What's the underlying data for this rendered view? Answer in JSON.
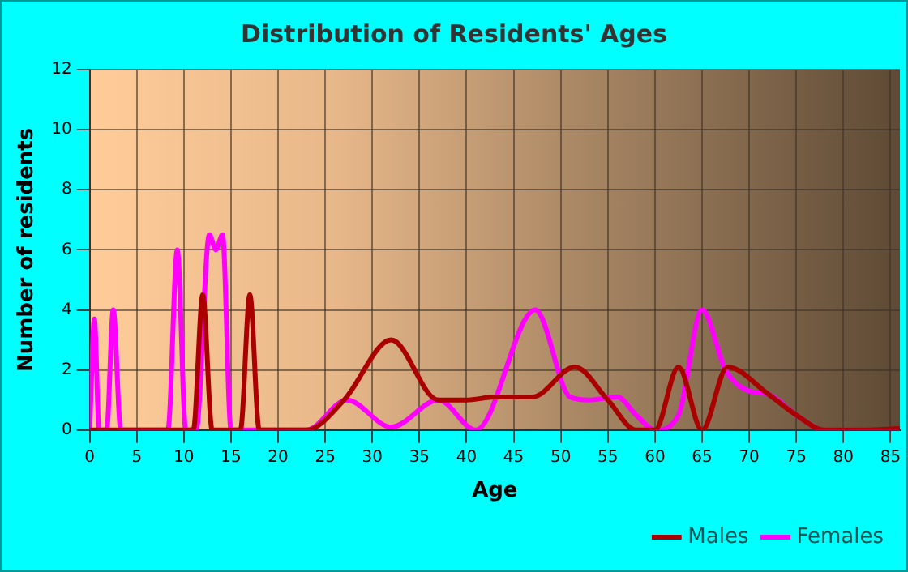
{
  "chart_data": {
    "type": "line",
    "title": "Distribution of Residents' Ages",
    "xlabel": "Age",
    "ylabel": "Number of residents",
    "xlim": [
      0,
      86
    ],
    "xticks": [
      0,
      5,
      10,
      15,
      20,
      25,
      30,
      35,
      40,
      45,
      50,
      55,
      60,
      65,
      70,
      75,
      80,
      85
    ],
    "ylim": [
      0,
      12
    ],
    "yticks": [
      0,
      2,
      4,
      6,
      8,
      10,
      12
    ],
    "grid": true,
    "legend": "bottom right",
    "marker": "none",
    "line_style": "solid",
    "series": [
      {
        "name": "Males",
        "color": "#aa0000",
        "x": [
          0,
          10,
          11,
          12,
          13,
          16,
          17,
          18,
          20,
          23,
          27,
          32,
          37,
          40,
          43,
          47,
          51.5,
          55,
          58,
          60,
          62.5,
          65,
          67.7,
          72,
          75,
          78,
          82,
          86
        ],
        "values": [
          0,
          0,
          0,
          4.5,
          0,
          0,
          4.5,
          0,
          0,
          0,
          1,
          3,
          1,
          1,
          1.1,
          1.1,
          2.1,
          1,
          0,
          0,
          2.1,
          0,
          2.1,
          1.2,
          0.5,
          0,
          0,
          0.05
        ]
      },
      {
        "name": "Females",
        "color": "#ff00ff",
        "x": [
          0,
          0.5,
          1,
          1.8,
          2.5,
          3.3,
          8.3,
          9.3,
          10.2,
          11.3,
          12.7,
          13.4,
          14.1,
          15,
          16,
          20,
          23,
          27.3,
          32,
          37,
          41,
          47.3,
          51,
          53,
          56,
          58,
          60,
          62.5,
          65,
          67.5,
          70,
          72,
          75,
          78,
          86
        ],
        "values": [
          0,
          3.7,
          0,
          0,
          4,
          0,
          0,
          6,
          0,
          0,
          6.5,
          6,
          6.5,
          0,
          0,
          0,
          0,
          1,
          0.1,
          1,
          0,
          4,
          1.1,
          1,
          1.1,
          0.5,
          0,
          0.5,
          4,
          2,
          1.3,
          1.2,
          0.5,
          0,
          0
        ]
      }
    ]
  }
}
